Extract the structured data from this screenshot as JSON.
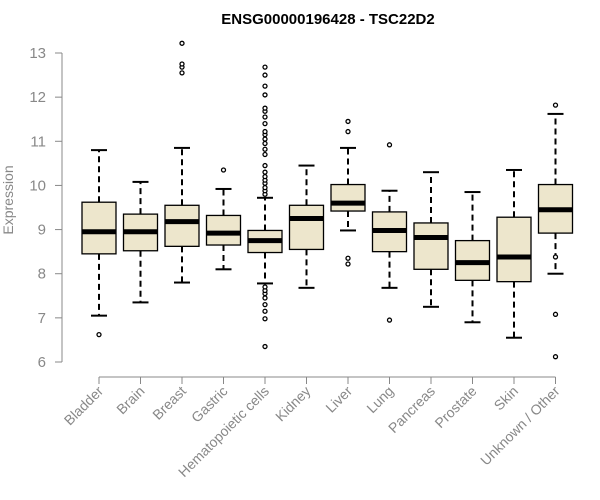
{
  "chart_data": {
    "type": "boxplot",
    "title": "ENSG00000196428 - TSC22D2",
    "ylabel": "Expression",
    "xlabel": "",
    "ylim": [
      6,
      13
    ],
    "yticks": [
      6,
      7,
      8,
      9,
      10,
      11,
      12,
      13
    ],
    "colors": {
      "box_fill": "#ede6cc",
      "stroke": "#000000",
      "axis": "#888888",
      "text": "#888888"
    },
    "categories": [
      "Bladder",
      "Brain",
      "Breast",
      "Gastric",
      "Hematopoietic cells",
      "Kidney",
      "Liver",
      "Lung",
      "Pancreas",
      "Prostate",
      "Skin",
      "Unknown / Other"
    ],
    "boxes": [
      {
        "name": "Bladder",
        "q1": 8.45,
        "median": 8.95,
        "q3": 9.62,
        "whisker_low": 7.05,
        "whisker_high": 10.8,
        "outliers": [
          6.62
        ]
      },
      {
        "name": "Brain",
        "q1": 8.52,
        "median": 8.95,
        "q3": 9.35,
        "whisker_low": 7.35,
        "whisker_high": 10.08,
        "outliers": []
      },
      {
        "name": "Breast",
        "q1": 8.62,
        "median": 9.18,
        "q3": 9.55,
        "whisker_low": 7.8,
        "whisker_high": 10.85,
        "outliers": [
          12.55,
          12.68,
          12.75,
          13.22
        ]
      },
      {
        "name": "Gastric",
        "q1": 8.65,
        "median": 8.92,
        "q3": 9.32,
        "whisker_low": 8.1,
        "whisker_high": 9.92,
        "outliers": [
          10.35
        ]
      },
      {
        "name": "Hematopoietic cells",
        "q1": 8.48,
        "median": 8.75,
        "q3": 8.98,
        "whisker_low": 7.78,
        "whisker_high": 9.72,
        "outliers": [
          6.35,
          6.98,
          7.15,
          7.3,
          7.45,
          7.55,
          7.62,
          7.7,
          9.8,
          9.88,
          9.95,
          10.05,
          10.12,
          10.2,
          10.3,
          10.45,
          10.7,
          10.82,
          10.95,
          11.05,
          11.15,
          11.22,
          11.4,
          11.55,
          11.68,
          11.75,
          12.05,
          12.25,
          12.5,
          12.68
        ]
      },
      {
        "name": "Kidney",
        "q1": 8.55,
        "median": 9.25,
        "q3": 9.55,
        "whisker_low": 7.68,
        "whisker_high": 10.45,
        "outliers": []
      },
      {
        "name": "Liver",
        "q1": 9.42,
        "median": 9.6,
        "q3": 10.02,
        "whisker_low": 8.98,
        "whisker_high": 10.85,
        "outliers": [
          8.22,
          8.35,
          11.22,
          11.45
        ]
      },
      {
        "name": "Lung",
        "q1": 8.5,
        "median": 8.98,
        "q3": 9.4,
        "whisker_low": 7.68,
        "whisker_high": 9.88,
        "outliers": [
          6.95,
          10.92
        ]
      },
      {
        "name": "Pancreas",
        "q1": 8.1,
        "median": 8.82,
        "q3": 9.15,
        "whisker_low": 7.25,
        "whisker_high": 10.3,
        "outliers": []
      },
      {
        "name": "Prostate",
        "q1": 7.85,
        "median": 8.25,
        "q3": 8.75,
        "whisker_low": 6.9,
        "whisker_high": 9.85,
        "outliers": []
      },
      {
        "name": "Skin",
        "q1": 7.82,
        "median": 8.38,
        "q3": 9.28,
        "whisker_low": 6.55,
        "whisker_high": 10.35,
        "outliers": []
      },
      {
        "name": "Unknown / Other",
        "q1": 8.92,
        "median": 9.45,
        "q3": 10.02,
        "whisker_low": 8.0,
        "whisker_high": 11.62,
        "outliers": [
          6.12,
          7.08,
          8.38,
          11.82
        ]
      }
    ]
  }
}
